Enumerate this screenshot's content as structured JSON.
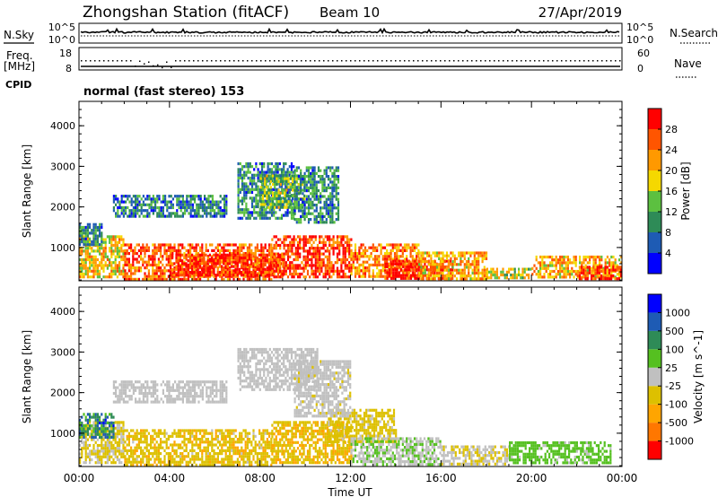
{
  "header": {
    "station": "Zhongshan Station (fitACF)",
    "beam": "Beam 10",
    "date": "27/Apr/2019"
  },
  "status_panels": {
    "nsky_label": "N.Sky",
    "nsearch_label": "N.Search",
    "nsky_ticks": [
      "10^5",
      "10^0"
    ],
    "nsearch_ticks": [
      "10^5",
      "10^0"
    ],
    "freq_label": "Freq.",
    "freq_unit": "[MHz]",
    "freq_ticks": [
      "18",
      "8"
    ],
    "nave_label": "Nave",
    "nave_ticks": [
      "60",
      "0"
    ],
    "cpid_label": "CPID",
    "cpid_text": "normal (fast stereo) 153"
  },
  "chart_data": [
    {
      "type": "heatmap",
      "title": "",
      "xlabel": "Time UT",
      "ylabel": "Slant Range [km]",
      "ylim": [
        180,
        4600
      ],
      "xlim": [
        0,
        24
      ],
      "yticks": [
        "1000",
        "2000",
        "3000",
        "4000"
      ],
      "xticks": [
        "00:00",
        "04:00",
        "08:00",
        "12:00",
        "16:00",
        "20:00",
        "00:00"
      ],
      "colorbar_label": "Power [dB]",
      "colorbar_ticks": [
        "4",
        "8",
        "12",
        "16",
        "20",
        "24",
        "28"
      ],
      "colorbar_range": [
        0,
        30
      ],
      "colors": [
        "#0000ff",
        "#1e5bb4",
        "#2e8b57",
        "#5cc040",
        "#f5d800",
        "#ff9900",
        "#ff5500",
        "#ff0000"
      ],
      "regions": [
        {
          "t0": 0.0,
          "t1": 2.0,
          "r0": 250,
          "r1": 1300,
          "v": 18
        },
        {
          "t0": 2.0,
          "t1": 8.5,
          "r0": 250,
          "r1": 1100,
          "v": 24
        },
        {
          "t0": 4.0,
          "t1": 9.0,
          "r0": 350,
          "r1": 850,
          "v": 27
        },
        {
          "t0": 8.5,
          "t1": 12.0,
          "r0": 300,
          "r1": 1300,
          "v": 26
        },
        {
          "t0": 12.0,
          "t1": 15.0,
          "r0": 300,
          "r1": 1100,
          "v": 22
        },
        {
          "t0": 13.5,
          "t1": 16.5,
          "r0": 250,
          "r1": 700,
          "v": 28
        },
        {
          "t0": 15.0,
          "t1": 18.0,
          "r0": 250,
          "r1": 900,
          "v": 20
        },
        {
          "t0": 18.0,
          "t1": 20.0,
          "r0": 250,
          "r1": 500,
          "v": 16
        },
        {
          "t0": 20.0,
          "t1": 24.0,
          "r0": 250,
          "r1": 800,
          "v": 20
        },
        {
          "t0": 22.0,
          "t1": 24.0,
          "r0": 250,
          "r1": 550,
          "v": 27
        },
        {
          "t0": 1.5,
          "t1": 6.5,
          "r0": 1750,
          "r1": 2300,
          "v": 8
        },
        {
          "t0": 7.0,
          "t1": 9.5,
          "r0": 1700,
          "r1": 3100,
          "v": 9
        },
        {
          "t0": 8.0,
          "t1": 10.0,
          "r0": 2000,
          "r1": 2800,
          "v": 13
        },
        {
          "t0": 9.5,
          "t1": 11.5,
          "r0": 1600,
          "r1": 3000,
          "v": 9
        },
        {
          "t0": 0.0,
          "t1": 1.0,
          "r0": 1100,
          "r1": 1600,
          "v": 9
        }
      ]
    },
    {
      "type": "heatmap",
      "title": "",
      "xlabel": "Time UT",
      "ylabel": "Slant Range [km]",
      "ylim": [
        180,
        4600
      ],
      "xlim": [
        0,
        24
      ],
      "yticks": [
        "1000",
        "2000",
        "3000",
        "4000"
      ],
      "xticks": [
        "00:00",
        "04:00",
        "08:00",
        "12:00",
        "16:00",
        "20:00",
        "00:00"
      ],
      "colorbar_label": "Velocity [m s^-1]",
      "colorbar_ticks": [
        "1000",
        "500",
        "100",
        "25",
        "-25",
        "-100",
        "-500",
        "-1000"
      ],
      "colorbar_range": [
        -1200,
        1200
      ],
      "colors": [
        "#ff0000",
        "#ff7700",
        "#ffa500",
        "#ddc000",
        "#c0c0c0",
        "#55c020",
        "#2e8b57",
        "#1e5bb4",
        "#0000ff"
      ],
      "regions": [
        {
          "t0": 0.0,
          "t1": 2.0,
          "r0": 250,
          "r1": 1300,
          "v": -150
        },
        {
          "t0": 0.0,
          "t1": 1.5,
          "r0": 900,
          "r1": 1500,
          "v": 600
        },
        {
          "t0": 2.0,
          "t1": 8.5,
          "r0": 250,
          "r1": 1100,
          "v": -300
        },
        {
          "t0": 8.5,
          "t1": 12.0,
          "r0": 300,
          "r1": 1300,
          "v": -350
        },
        {
          "t0": 11.0,
          "t1": 14.0,
          "r0": 800,
          "r1": 1600,
          "v": -250
        },
        {
          "t0": 12.0,
          "t1": 16.0,
          "r0": 250,
          "r1": 900,
          "v": 120
        },
        {
          "t0": 16.0,
          "t1": 19.0,
          "r0": 250,
          "r1": 700,
          "v": -120
        },
        {
          "t0": 19.0,
          "t1": 23.5,
          "r0": 300,
          "r1": 800,
          "v": 250
        },
        {
          "t0": 1.5,
          "t1": 6.5,
          "r0": 1750,
          "r1": 2300,
          "v": 5
        },
        {
          "t0": 7.0,
          "t1": 10.5,
          "r0": 2100,
          "r1": 3100,
          "v": 10
        },
        {
          "t0": 9.5,
          "t1": 12.0,
          "r0": 1400,
          "r1": 2800,
          "v": -80
        }
      ]
    }
  ]
}
